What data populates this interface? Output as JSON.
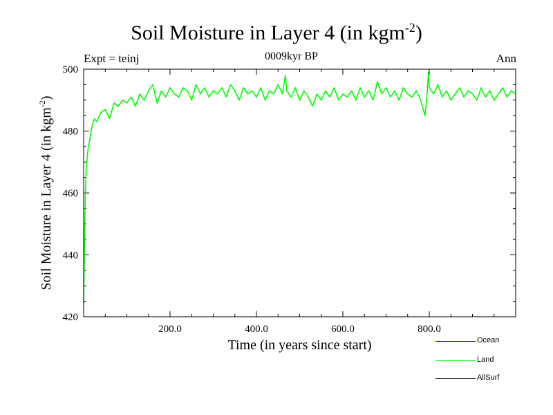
{
  "header": {
    "title_main": "Soil Moisture in Layer 4 (in kgm",
    "title_sup": "-2",
    "title_end": ")",
    "expt": "Expt = teinj",
    "period": "0009kyr BP",
    "season": "Ann"
  },
  "legend": {
    "items": [
      {
        "label": "Ocean",
        "color": "#0000ff"
      },
      {
        "label": "Land",
        "color": "#00ff00"
      },
      {
        "label": "AllSurf",
        "color": "#000000"
      }
    ]
  },
  "chart_data": {
    "type": "line",
    "title": "Soil Moisture in Layer 4 (in kgm-2)",
    "xlabel": "Time (in years since start)",
    "ylabel_main": "Soil Moisture in Layer 4 (in kgm",
    "ylabel_sup": "-2",
    "ylabel_end": ")",
    "xlim": [
      0,
      1000
    ],
    "ylim": [
      420,
      500
    ],
    "x_ticks": [
      200,
      400,
      600,
      800
    ],
    "x_tick_labels": [
      "200.0",
      "400.0",
      "600.0",
      "800.0"
    ],
    "y_ticks": [
      420,
      440,
      460,
      480,
      500
    ],
    "y_tick_labels": [
      "420",
      "440",
      "460",
      "480",
      "500"
    ],
    "series": [
      {
        "name": "Land",
        "color": "#00ff00",
        "x": [
          0,
          2,
          4,
          6,
          10,
          15,
          20,
          25,
          30,
          40,
          50,
          60,
          70,
          80,
          90,
          100,
          110,
          120,
          130,
          140,
          150,
          160,
          170,
          180,
          190,
          200,
          210,
          220,
          230,
          240,
          250,
          260,
          270,
          280,
          290,
          300,
          310,
          320,
          330,
          340,
          350,
          360,
          370,
          380,
          390,
          400,
          410,
          420,
          430,
          440,
          450,
          460,
          467,
          470,
          480,
          490,
          500,
          510,
          520,
          530,
          540,
          550,
          560,
          570,
          580,
          590,
          600,
          610,
          620,
          630,
          640,
          650,
          660,
          670,
          680,
          690,
          700,
          710,
          720,
          730,
          740,
          750,
          760,
          770,
          780,
          790,
          795,
          798,
          800,
          810,
          820,
          830,
          840,
          850,
          860,
          870,
          880,
          890,
          900,
          910,
          920,
          930,
          940,
          950,
          960,
          970,
          980,
          990,
          1000
        ],
        "values": [
          424,
          445,
          460,
          468,
          474,
          478,
          482,
          484,
          483,
          486,
          487,
          484,
          489,
          488,
          490,
          489,
          491,
          488,
          492,
          490,
          493,
          495,
          489,
          493,
          491,
          494,
          492,
          491,
          494,
          493,
          490,
          495,
          492,
          494,
          491,
          493,
          492,
          494,
          491,
          495,
          493,
          490,
          494,
          492,
          493,
          491,
          494,
          490,
          493,
          492,
          495,
          492,
          498,
          493,
          491,
          494,
          490,
          493,
          491,
          488,
          492,
          490,
          493,
          491,
          494,
          490,
          492,
          491,
          493,
          490,
          494,
          491,
          493,
          490,
          496,
          492,
          494,
          491,
          493,
          490,
          494,
          492,
          491,
          493,
          490,
          485,
          492,
          499,
          494,
          492,
          495,
          491,
          493,
          490,
          492,
          494,
          491,
          493,
          492,
          490,
          494,
          491,
          493,
          490,
          492,
          494,
          491,
          493,
          492
        ]
      }
    ],
    "legend": [
      "Ocean",
      "Land",
      "AllSurf"
    ]
  }
}
